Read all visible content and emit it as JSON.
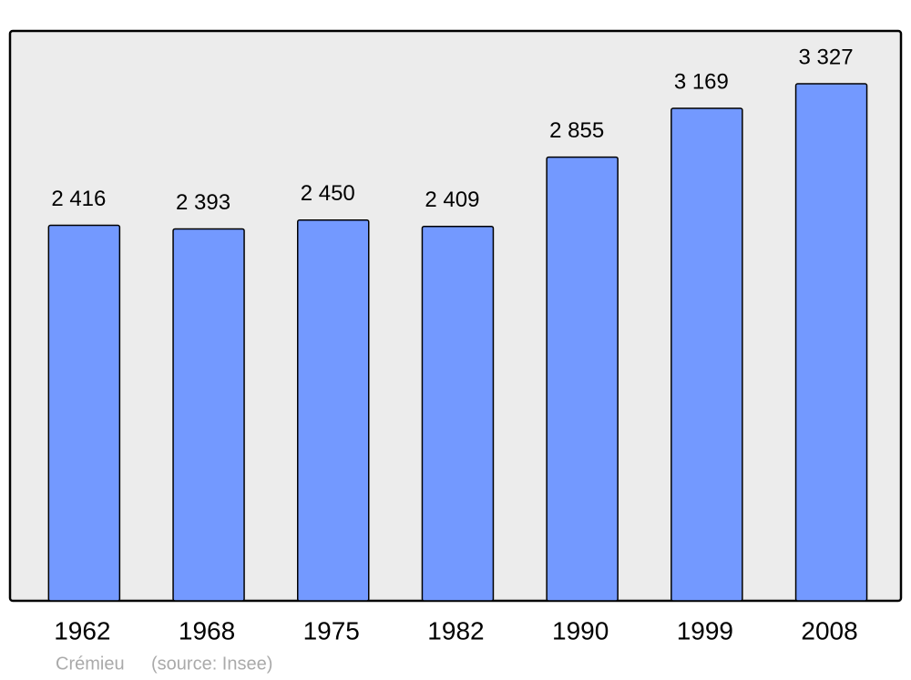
{
  "chart_data": {
    "type": "bar",
    "categories": [
      "1962",
      "1968",
      "1975",
      "1982",
      "1990",
      "1999",
      "2008"
    ],
    "values": [
      2416,
      2393,
      2450,
      2409,
      2855,
      3169,
      3327
    ],
    "value_labels": [
      "2 416",
      "2 393",
      "2 450",
      "2 409",
      "2 855",
      "3 169",
      "3 327"
    ],
    "color": "#7399ff",
    "ylim": [
      0,
      3661
    ],
    "caption": "Crémieu",
    "source": "(source: Insee)"
  }
}
